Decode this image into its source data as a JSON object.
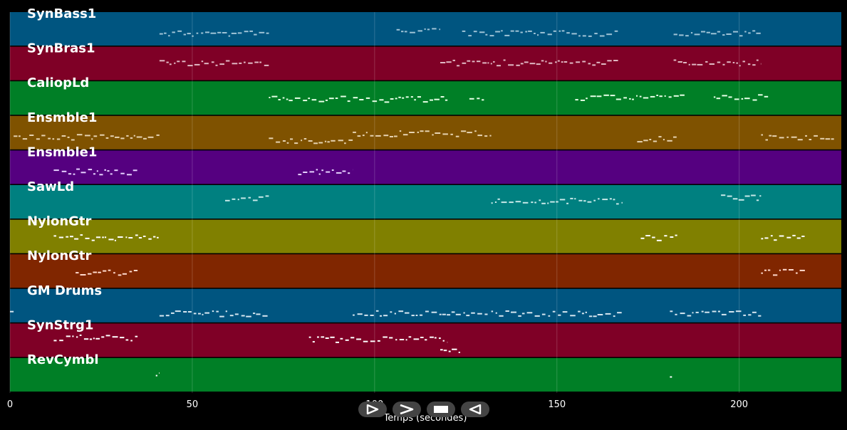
{
  "xaxis": {
    "label": "Temps (secondes)",
    "range": [
      0,
      228
    ],
    "ticks": [
      0,
      50,
      100,
      150,
      200
    ]
  },
  "tracks": [
    {
      "name": "SynBass1",
      "color": "#005580",
      "note_color": "#9fc3d6",
      "notes": [
        [
          41,
          71,
          0.6
        ],
        [
          106,
          118,
          0.5
        ],
        [
          124,
          167,
          0.6
        ],
        [
          182,
          206,
          0.6
        ]
      ]
    },
    {
      "name": "SynBras1",
      "color": "#7f0026",
      "note_color": "#e0b8c3",
      "notes": [
        [
          41,
          71,
          0.45
        ],
        [
          118,
          167,
          0.45
        ],
        [
          182,
          206,
          0.45
        ]
      ]
    },
    {
      "name": "CaliopLd",
      "color": "#007f26",
      "note_color": "#e6ffe6",
      "notes": [
        [
          71,
          120,
          0.5
        ],
        [
          126,
          130,
          0.45
        ],
        [
          155,
          185,
          0.45
        ],
        [
          193,
          208,
          0.45
        ]
      ]
    },
    {
      "name": "Ensmble1",
      "color": "#7f5200",
      "note_color": "#e6d2b0",
      "notes": [
        [
          1,
          41,
          0.6
        ],
        [
          71,
          94,
          0.7
        ],
        [
          94,
          132,
          0.5
        ],
        [
          172,
          183,
          0.65
        ],
        [
          206,
          226,
          0.6
        ]
      ]
    },
    {
      "name": "Ensmble1",
      "color": "#550080",
      "note_color": "#e6d2ff",
      "notes": [
        [
          12,
          35,
          0.6
        ],
        [
          79,
          94,
          0.6
        ]
      ]
    },
    {
      "name": "SawLd",
      "color": "#008080",
      "note_color": "#c7e8e8",
      "notes": [
        [
          59,
          71,
          0.35
        ],
        [
          132,
          168,
          0.45
        ],
        [
          195,
          206,
          0.35
        ]
      ]
    },
    {
      "name": "NylonGtr",
      "color": "#808000",
      "note_color": "#ffffff",
      "notes": [
        [
          12,
          41,
          0.5
        ],
        [
          173,
          183,
          0.5
        ],
        [
          206,
          218,
          0.5
        ]
      ]
    },
    {
      "name": "NylonGtr",
      "color": "#802600",
      "note_color": "#ffd9cc",
      "notes": [
        [
          18,
          35,
          0.5
        ],
        [
          206,
          218,
          0.5
        ]
      ]
    },
    {
      "name": "GM Drums",
      "color": "#005580",
      "note_color": "#d6e6f0",
      "notes": [
        [
          0,
          1,
          0.7
        ],
        [
          41,
          71,
          0.7
        ],
        [
          94,
          131,
          0.7
        ],
        [
          132,
          168,
          0.7
        ],
        [
          181,
          206,
          0.7
        ]
      ]
    },
    {
      "name": "SynStrg1",
      "color": "#7f0026",
      "note_color": "#ffffff",
      "notes": [
        [
          12,
          35,
          0.4
        ],
        [
          82,
          120,
          0.45
        ],
        [
          118,
          124,
          0.75
        ]
      ]
    },
    {
      "name": "RevCymbl",
      "color": "#007f26",
      "note_color": "#ffffff",
      "notes": [
        [
          40,
          41,
          0.45
        ],
        [
          181,
          182,
          0.45
        ]
      ]
    }
  ],
  "controls": [
    {
      "name": "play-from-start-button",
      "icon": "play-outline-icon"
    },
    {
      "name": "play-button",
      "icon": "chevron-right-icon"
    },
    {
      "name": "stop-button",
      "icon": "stop-icon"
    },
    {
      "name": "rewind-button",
      "icon": "triangle-left-icon"
    }
  ]
}
